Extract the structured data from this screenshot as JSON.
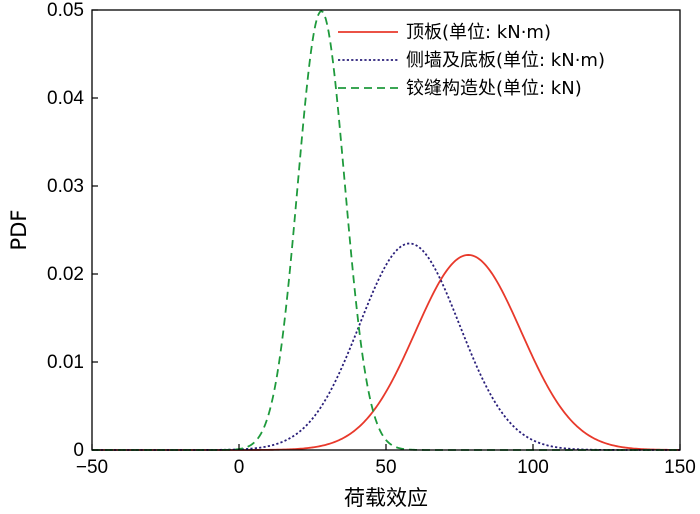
{
  "chart_data": {
    "type": "line",
    "xlabel": "荷载效应",
    "ylabel": "PDF",
    "xlim": [
      -50,
      150
    ],
    "ylim": [
      0,
      0.05
    ],
    "xticks": [
      -50,
      0,
      50,
      100,
      150
    ],
    "xtick_labels": [
      "−50",
      "0",
      "50",
      "100",
      "150"
    ],
    "yticks": [
      0,
      0.01,
      0.02,
      0.03,
      0.04,
      0.05
    ],
    "ytick_labels": [
      "0",
      "0.01",
      "0.02",
      "0.03",
      "0.04",
      "0.05"
    ],
    "grid": false,
    "legend_position": "top-right",
    "series": [
      {
        "name": "顶板(单位: kN·m)",
        "distribution": "normal",
        "mean": 78,
        "std": 18,
        "color": "#e8392b",
        "style": "solid"
      },
      {
        "name": "侧墙及底板(单位: kN·m)",
        "distribution": "normal",
        "mean": 58,
        "std": 17,
        "color": "#2a1f7a",
        "style": "dotted"
      },
      {
        "name": "铰缝构造处(单位: kN)",
        "distribution": "normal",
        "mean": 28,
        "std": 8,
        "color": "#1e9a3c",
        "style": "dashed"
      }
    ]
  }
}
